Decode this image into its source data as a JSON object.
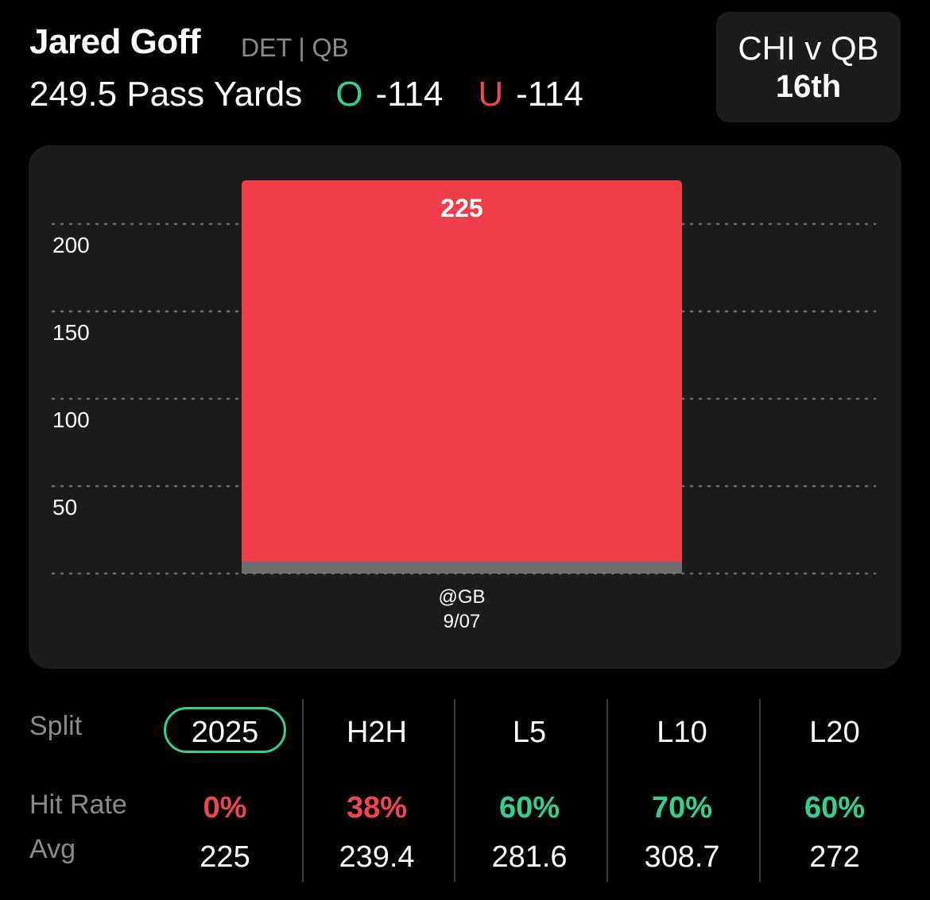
{
  "header": {
    "player_name": "Jared Goff",
    "player_meta": "DET | QB",
    "prop_line": "249.5 Pass Yards",
    "over_label": "O",
    "over_odds": "-114",
    "under_label": "U",
    "under_odds": "-114"
  },
  "matchup": {
    "title": "CHI v QB",
    "rank": "16th"
  },
  "chart_data": {
    "type": "bar",
    "categories": [
      "@GB 9/07"
    ],
    "category_lines": [
      [
        "@GB",
        "9/07"
      ]
    ],
    "values": [
      225
    ],
    "data_labels": [
      "225"
    ],
    "yticks": [
      50,
      100,
      150,
      200
    ],
    "ylim": [
      0,
      250
    ],
    "grid": true,
    "bar_color": "#ef3e4a",
    "base_color": "#6e6e6e"
  },
  "splits": {
    "split_label": "Split",
    "hit_rate_label": "Hit Rate",
    "avg_label": "Avg",
    "columns": [
      {
        "label": "2025",
        "hit_rate": "0%",
        "avg": "225",
        "selected": true,
        "tone": "red"
      },
      {
        "label": "H2H",
        "hit_rate": "38%",
        "avg": "239.4",
        "selected": false,
        "tone": "red"
      },
      {
        "label": "L5",
        "hit_rate": "60%",
        "avg": "281.6",
        "selected": false,
        "tone": "green"
      },
      {
        "label": "L10",
        "hit_rate": "70%",
        "avg": "308.7",
        "selected": false,
        "tone": "green"
      },
      {
        "label": "L20",
        "hit_rate": "60%",
        "avg": "272",
        "selected": false,
        "tone": "green"
      }
    ]
  },
  "colors": {
    "green": "#2fd38e",
    "red": "#ef4750",
    "card": "#1c1c1c"
  }
}
